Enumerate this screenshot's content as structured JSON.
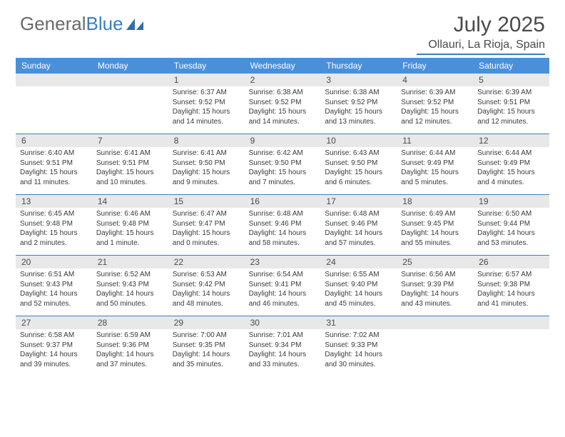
{
  "logo": {
    "text_grey": "General",
    "text_blue": "Blue"
  },
  "title": "July 2025",
  "location": "Ollauri, La Rioja, Spain",
  "colors": {
    "header_bg": "#4a90d9",
    "header_text": "#ffffff",
    "rule": "#3b7fbf",
    "daynum_bg": "#e8e8e8",
    "body_text": "#3a3a3a",
    "title_text": "#4a4a4a"
  },
  "day_names": [
    "Sunday",
    "Monday",
    "Tuesday",
    "Wednesday",
    "Thursday",
    "Friday",
    "Saturday"
  ],
  "first_weekday_index": 2,
  "days": [
    {
      "n": 1,
      "sunrise": "6:37 AM",
      "sunset": "9:52 PM",
      "daylight": "15 hours and 14 minutes."
    },
    {
      "n": 2,
      "sunrise": "6:38 AM",
      "sunset": "9:52 PM",
      "daylight": "15 hours and 14 minutes."
    },
    {
      "n": 3,
      "sunrise": "6:38 AM",
      "sunset": "9:52 PM",
      "daylight": "15 hours and 13 minutes."
    },
    {
      "n": 4,
      "sunrise": "6:39 AM",
      "sunset": "9:52 PM",
      "daylight": "15 hours and 12 minutes."
    },
    {
      "n": 5,
      "sunrise": "6:39 AM",
      "sunset": "9:51 PM",
      "daylight": "15 hours and 12 minutes."
    },
    {
      "n": 6,
      "sunrise": "6:40 AM",
      "sunset": "9:51 PM",
      "daylight": "15 hours and 11 minutes."
    },
    {
      "n": 7,
      "sunrise": "6:41 AM",
      "sunset": "9:51 PM",
      "daylight": "15 hours and 10 minutes."
    },
    {
      "n": 8,
      "sunrise": "6:41 AM",
      "sunset": "9:50 PM",
      "daylight": "15 hours and 9 minutes."
    },
    {
      "n": 9,
      "sunrise": "6:42 AM",
      "sunset": "9:50 PM",
      "daylight": "15 hours and 7 minutes."
    },
    {
      "n": 10,
      "sunrise": "6:43 AM",
      "sunset": "9:50 PM",
      "daylight": "15 hours and 6 minutes."
    },
    {
      "n": 11,
      "sunrise": "6:44 AM",
      "sunset": "9:49 PM",
      "daylight": "15 hours and 5 minutes."
    },
    {
      "n": 12,
      "sunrise": "6:44 AM",
      "sunset": "9:49 PM",
      "daylight": "15 hours and 4 minutes."
    },
    {
      "n": 13,
      "sunrise": "6:45 AM",
      "sunset": "9:48 PM",
      "daylight": "15 hours and 2 minutes."
    },
    {
      "n": 14,
      "sunrise": "6:46 AM",
      "sunset": "9:48 PM",
      "daylight": "15 hours and 1 minute."
    },
    {
      "n": 15,
      "sunrise": "6:47 AM",
      "sunset": "9:47 PM",
      "daylight": "15 hours and 0 minutes."
    },
    {
      "n": 16,
      "sunrise": "6:48 AM",
      "sunset": "9:46 PM",
      "daylight": "14 hours and 58 minutes."
    },
    {
      "n": 17,
      "sunrise": "6:48 AM",
      "sunset": "9:46 PM",
      "daylight": "14 hours and 57 minutes."
    },
    {
      "n": 18,
      "sunrise": "6:49 AM",
      "sunset": "9:45 PM",
      "daylight": "14 hours and 55 minutes."
    },
    {
      "n": 19,
      "sunrise": "6:50 AM",
      "sunset": "9:44 PM",
      "daylight": "14 hours and 53 minutes."
    },
    {
      "n": 20,
      "sunrise": "6:51 AM",
      "sunset": "9:43 PM",
      "daylight": "14 hours and 52 minutes."
    },
    {
      "n": 21,
      "sunrise": "6:52 AM",
      "sunset": "9:43 PM",
      "daylight": "14 hours and 50 minutes."
    },
    {
      "n": 22,
      "sunrise": "6:53 AM",
      "sunset": "9:42 PM",
      "daylight": "14 hours and 48 minutes."
    },
    {
      "n": 23,
      "sunrise": "6:54 AM",
      "sunset": "9:41 PM",
      "daylight": "14 hours and 46 minutes."
    },
    {
      "n": 24,
      "sunrise": "6:55 AM",
      "sunset": "9:40 PM",
      "daylight": "14 hours and 45 minutes."
    },
    {
      "n": 25,
      "sunrise": "6:56 AM",
      "sunset": "9:39 PM",
      "daylight": "14 hours and 43 minutes."
    },
    {
      "n": 26,
      "sunrise": "6:57 AM",
      "sunset": "9:38 PM",
      "daylight": "14 hours and 41 minutes."
    },
    {
      "n": 27,
      "sunrise": "6:58 AM",
      "sunset": "9:37 PM",
      "daylight": "14 hours and 39 minutes."
    },
    {
      "n": 28,
      "sunrise": "6:59 AM",
      "sunset": "9:36 PM",
      "daylight": "14 hours and 37 minutes."
    },
    {
      "n": 29,
      "sunrise": "7:00 AM",
      "sunset": "9:35 PM",
      "daylight": "14 hours and 35 minutes."
    },
    {
      "n": 30,
      "sunrise": "7:01 AM",
      "sunset": "9:34 PM",
      "daylight": "14 hours and 33 minutes."
    },
    {
      "n": 31,
      "sunrise": "7:02 AM",
      "sunset": "9:33 PM",
      "daylight": "14 hours and 30 minutes."
    }
  ],
  "labels": {
    "sunrise": "Sunrise:",
    "sunset": "Sunset:",
    "daylight": "Daylight:"
  }
}
